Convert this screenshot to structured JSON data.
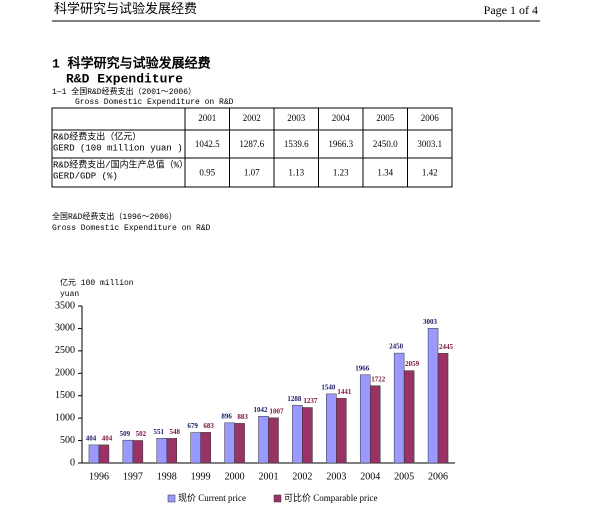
{
  "header": {
    "title": "科学研究与试验发展经费",
    "page": "Page 1 of 4"
  },
  "section": {
    "title": "1 科学研究与试验发展经费",
    "subtitle": "R&D Expenditure"
  },
  "table": {
    "caption": "1—1 全国R&D经费支出（2001～2006）",
    "caption_en": "Gross Domestic Expenditure on R&D",
    "columns": [
      "2001",
      "2002",
      "2003",
      "2004",
      "2005",
      "2006"
    ],
    "rows": [
      {
        "label": [
          "R&D经费支出（亿元）",
          "GERD (100 million yuan )"
        ],
        "cells": [
          "1042.5",
          "1287.6",
          "1539.6",
          "1966.3",
          "2450.0",
          "3003.1"
        ]
      },
      {
        "label": [
          "R&D经费支出/国内生产总值（%）",
          "GERD/GDP (%)"
        ],
        "cells": [
          "0.95",
          "1.07",
          "1.13",
          "1.23",
          "1.34",
          "1.42"
        ]
      }
    ]
  },
  "chart_data": {
    "type": "bar",
    "title": "全国R&D经费支出（1996～2006）",
    "subtitle": "Gross Domestic Expenditure on R&D",
    "y_label": [
      "亿元 100 million",
      "yuan"
    ],
    "categories": [
      "1996",
      "1997",
      "1998",
      "1999",
      "2000",
      "2001",
      "2002",
      "2003",
      "2004",
      "2005",
      "2006"
    ],
    "series": [
      {
        "name": "现价 Current price",
        "color": "#9999ff",
        "values": [
          404,
          509,
          551,
          679,
          896,
          1042,
          1288,
          1540,
          1966,
          2450,
          3003
        ]
      },
      {
        "name": "可比价 Comparable price",
        "color": "#993366",
        "values": [
          404,
          502,
          548,
          683,
          883,
          1007,
          1237,
          1441,
          1722,
          2059,
          2445
        ]
      }
    ],
    "ylim": [
      0,
      3500
    ],
    "yticks": [
      0,
      500,
      1000,
      1500,
      2000,
      2500,
      3000,
      3500
    ]
  }
}
